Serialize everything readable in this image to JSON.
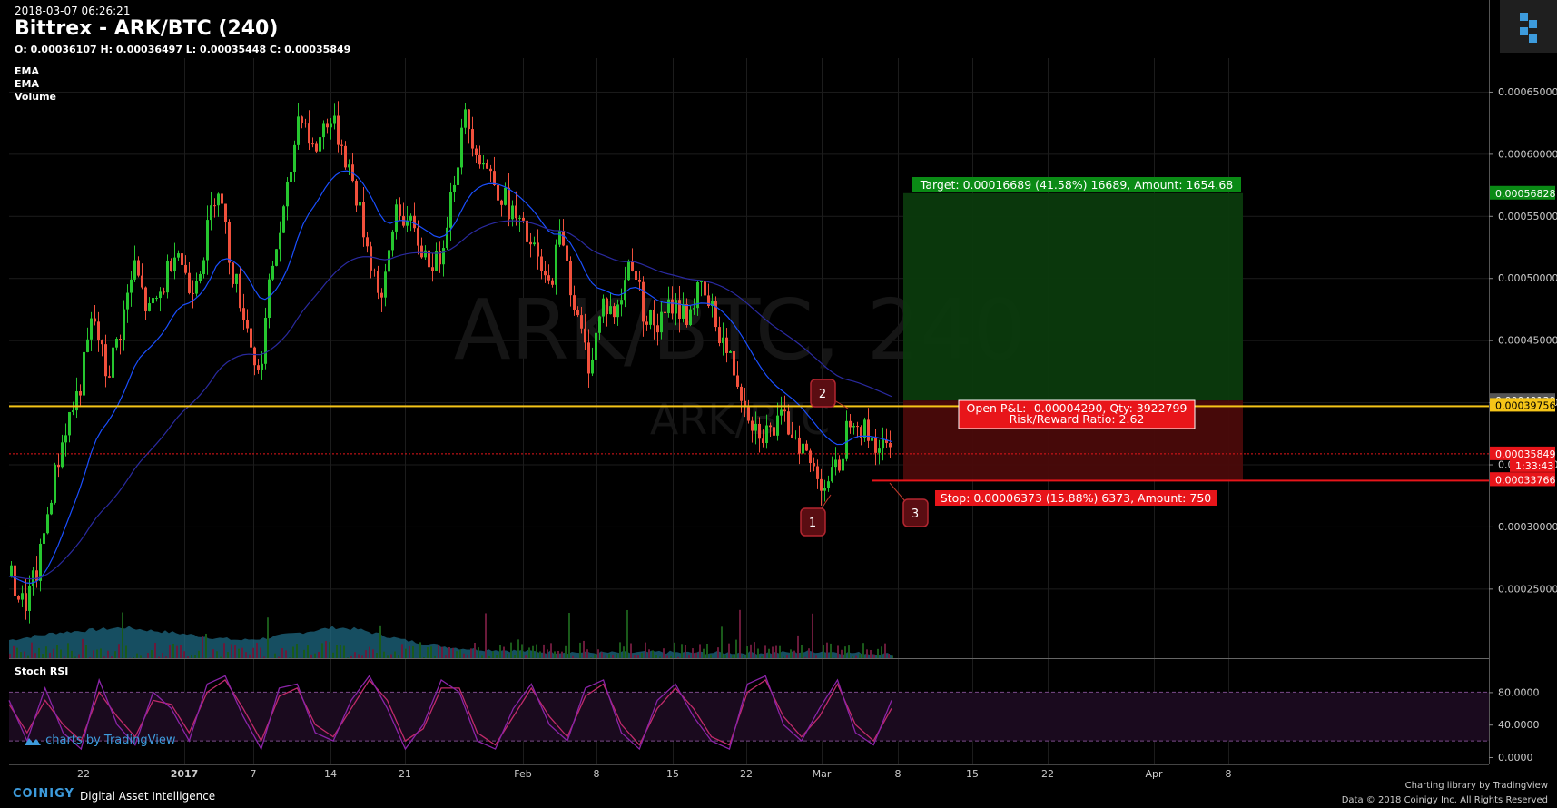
{
  "header": {
    "timestamp": "2018-03-07 06:26:21",
    "title": "Bittrex - ARK/BTC (240)",
    "ohlc": "O: 0.00036107 H: 0.00036497 L: 0.00035448 C: 0.00035849"
  },
  "indicators": [
    "EMA",
    "EMA",
    "Volume"
  ],
  "stoch_label": "Stoch RSI",
  "watermark": {
    "main": "ARK/BTC, 240",
    "sub": "ARK/BTC"
  },
  "brand": {
    "tv": "charts by TradingView",
    "coinigy": "COINIGY",
    "tagline": "Digital Asset Intelligence",
    "credits_line1": "Charting library by  TradingView",
    "credits_line2": "Data © 2018  Coinigy Inc. All Rights Reserved"
  },
  "colors": {
    "up": "#26c62f",
    "down": "#f0503c",
    "ema_fast": "#1a4fff",
    "ema_slow": "#2a2aa0",
    "support": "#f5c518",
    "target": "#0a8a15",
    "stop": "#e8151a",
    "stoch_k": "#8a24a8",
    "stoch_d": "#c02a6a"
  },
  "chart_data": {
    "type": "candlestick",
    "x_tick_labels": [
      "22",
      "2017",
      "7",
      "14",
      "21",
      "Feb",
      "8",
      "15",
      "22",
      "Mar",
      "8",
      "15",
      "22",
      "Apr",
      "8"
    ],
    "price_axis_labels": [
      "0.00065000",
      "0.00060000",
      "0.00055000",
      "0.00050000",
      "0.00045000",
      "0.00040000",
      "0.00035000",
      "0.00030000",
      "0.00025000"
    ],
    "stoch_axis_labels": [
      "80.0000",
      "40.0000",
      "0.0000"
    ],
    "price_tags": [
      {
        "text": "0.00056828",
        "price": 0.00056828,
        "color": "#0a8a15",
        "fg": "#fff"
      },
      {
        "text": "0.00040139",
        "price": 0.00040139,
        "color": "#555555",
        "fg": "#fff"
      },
      {
        "text": "0.00039756",
        "price": 0.00039756,
        "color": "#f5c518",
        "fg": "#000"
      },
      {
        "text": "0.00035849",
        "price": 0.00035849,
        "color": "#e8151a",
        "fg": "#fff"
      },
      {
        "text": "1:33:43",
        "price": 0.000349,
        "color": "#e8151a",
        "fg": "#fff"
      },
      {
        "text": "0.00033779",
        "price": 0.00033779,
        "color": "#e8151a",
        "fg": "#fff"
      },
      {
        "text": "0.00033766",
        "price": 0.00033766,
        "color": "#e8151a",
        "fg": "#fff"
      }
    ],
    "support_level": 0.00039756,
    "last_close": 0.00035849,
    "trade": {
      "entry": 0.00040139,
      "target": 0.00056828,
      "stop": 0.00033766,
      "target_label": "Target: 0.00016689 (41.58%) 16689, Amount: 1654.68",
      "pnl_label_1": "Open P&L: -0.00004290, Qty: 3922799",
      "pnl_label_2": "Risk/Reward Ratio: 2.62",
      "stop_label": "Stop: 0.00006373 (15.88%) 6373, Amount: 750"
    },
    "markers": [
      {
        "label": "1",
        "price": 0.000332
      },
      {
        "label": "2",
        "price": 0.000403
      },
      {
        "label": "3",
        "price": 0.000337
      }
    ],
    "price_path": [
      0.00026,
      0.000235,
      0.000265,
      0.00033,
      0.00038,
      0.00041,
      0.00047,
      0.00042,
      0.00046,
      0.00051,
      0.00047,
      0.00049,
      0.00053,
      0.00049,
      0.00052,
      0.00058,
      0.00051,
      0.00047,
      0.00042,
      0.00051,
      0.00056,
      0.00064,
      0.0006,
      0.00063,
      0.00061,
      0.00057,
      0.00052,
      0.00048,
      0.00056,
      0.00054,
      0.00052,
      0.00051,
      0.00057,
      0.00063,
      0.0006,
      0.00058,
      0.00056,
      0.00054,
      0.00052,
      0.00049,
      0.00054,
      0.00047,
      0.00043,
      0.00048,
      0.00047,
      0.00052,
      0.00047,
      0.00046,
      0.00048,
      0.00047,
      0.00049,
      0.00047,
      0.00044,
      0.00041,
      0.00038,
      0.000375,
      0.000385,
      0.000375,
      0.00035,
      0.000335,
      0.000345,
      0.000395,
      0.000375,
      0.000365,
      0.000358
    ],
    "volume_path": [
      0.45,
      0.55,
      0.65,
      0.7,
      0.75,
      0.8,
      0.72,
      0.66,
      0.58,
      0.5,
      0.45,
      0.5,
      0.6,
      0.7,
      0.8,
      0.75,
      0.6,
      0.45,
      0.35,
      0.25,
      0.2,
      0.18,
      0.15,
      0.12,
      0.12,
      0.1,
      0.1,
      0.1,
      0.12,
      0.1,
      0.1,
      0.1,
      0.1,
      0.1,
      0.12,
      0.14,
      0.1,
      0.08,
      0.06
    ],
    "stoch_k": [
      70,
      20,
      85,
      30,
      10,
      95,
      40,
      15,
      80,
      60,
      20,
      90,
      100,
      50,
      10,
      85,
      90,
      30,
      20,
      70,
      100,
      60,
      10,
      40,
      95,
      80,
      20,
      10,
      60,
      90,
      40,
      20,
      85,
      95,
      30,
      10,
      70,
      90,
      50,
      20,
      10,
      90,
      100,
      40,
      20,
      60,
      95,
      30,
      15,
      70
    ],
    "stoch_d": [
      65,
      30,
      70,
      40,
      20,
      80,
      50,
      25,
      70,
      65,
      30,
      80,
      95,
      60,
      20,
      75,
      85,
      40,
      25,
      60,
      95,
      70,
      20,
      35,
      85,
      85,
      30,
      15,
      50,
      85,
      50,
      25,
      75,
      90,
      40,
      15,
      60,
      85,
      60,
      25,
      15,
      80,
      95,
      50,
      25,
      50,
      90,
      40,
      20,
      60
    ]
  }
}
